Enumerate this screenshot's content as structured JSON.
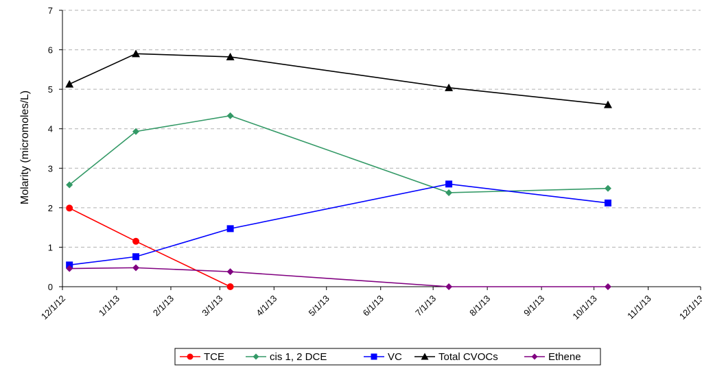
{
  "chart_data": {
    "type": "line",
    "title": "",
    "xlabel": "",
    "ylabel": "Molarity (micromoles/L)",
    "ylim": [
      0,
      7
    ],
    "yticks": [
      "0",
      "1",
      "2",
      "3",
      "4",
      "5",
      "6",
      "7"
    ],
    "xlim": [
      "2012-12-01",
      "2013-12-01"
    ],
    "xticks": [
      {
        "date": "2012-12-01",
        "label": "12/1/12"
      },
      {
        "date": "2013-01-01",
        "label": "1/1/13"
      },
      {
        "date": "2013-02-01",
        "label": "2/1/13"
      },
      {
        "date": "2013-03-01",
        "label": "3/1/13"
      },
      {
        "date": "2013-04-01",
        "label": "4/1/13"
      },
      {
        "date": "2013-05-01",
        "label": "5/1/13"
      },
      {
        "date": "2013-06-01",
        "label": "6/1/13"
      },
      {
        "date": "2013-07-01",
        "label": "7/1/13"
      },
      {
        "date": "2013-08-01",
        "label": "8/1/13"
      },
      {
        "date": "2013-09-01",
        "label": "9/1/13"
      },
      {
        "date": "2013-10-01",
        "label": "10/1/13"
      },
      {
        "date": "2013-11-01",
        "label": "11/1/13"
      },
      {
        "date": "2013-12-01",
        "label": "12/1/13"
      }
    ],
    "grid": "horizontal dashed",
    "legend_position": "bottom",
    "x": [
      "2012-12-05",
      "2013-01-12",
      "2013-03-07",
      "2013-07-10",
      "2013-10-09"
    ],
    "series": [
      {
        "name": "TCE",
        "color": "#ff0000",
        "marker": "circle",
        "values": [
          1.99,
          1.15,
          0.0,
          null,
          null
        ]
      },
      {
        "name": "cis 1, 2 DCE",
        "color": "#339966",
        "marker": "diamond",
        "values": [
          2.58,
          3.93,
          4.33,
          2.38,
          2.49
        ]
      },
      {
        "name": "VC",
        "color": "#0000ff",
        "marker": "square",
        "values": [
          0.55,
          0.76,
          1.47,
          2.6,
          2.12
        ]
      },
      {
        "name": "Total CVOCs",
        "color": "#000000",
        "marker": "triangle",
        "values": [
          5.13,
          5.9,
          5.82,
          5.04,
          4.61
        ]
      },
      {
        "name": "Ethene",
        "color": "#800080",
        "marker": "diamond",
        "values": [
          0.46,
          0.48,
          0.38,
          0.0,
          0.0
        ]
      }
    ]
  }
}
